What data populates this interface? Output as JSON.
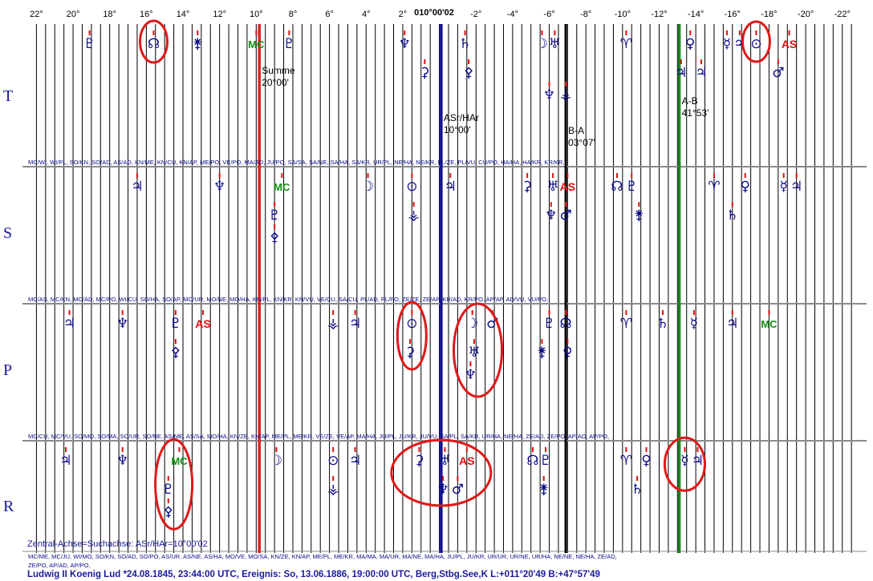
{
  "chart_data": {
    "type": "scatter",
    "title": "",
    "xlabel": "",
    "ylabel": "",
    "x_direction": "descending",
    "xlim": [
      22.5,
      -22.8
    ],
    "x_ticks": [
      {
        "value": 22,
        "label": "22°"
      },
      {
        "value": 20,
        "label": "20°"
      },
      {
        "value": 18,
        "label": "18°"
      },
      {
        "value": 16,
        "label": "16°"
      },
      {
        "value": 14,
        "label": "14°"
      },
      {
        "value": 12,
        "label": "12°"
      },
      {
        "value": 10,
        "label": "10°"
      },
      {
        "value": 8,
        "label": "8°"
      },
      {
        "value": 6,
        "label": "6°"
      },
      {
        "value": 4,
        "label": "4°"
      },
      {
        "value": 2,
        "label": "2°"
      },
      {
        "value": -2,
        "label": "-2°"
      },
      {
        "value": -4,
        "label": "-4°"
      },
      {
        "value": -6,
        "label": "-6°"
      },
      {
        "value": -8,
        "label": "-8°"
      },
      {
        "value": -10,
        "label": "-10°"
      },
      {
        "value": -12,
        "label": "-12°"
      },
      {
        "value": -14,
        "label": "-14°"
      },
      {
        "value": -16,
        "label": "-16°"
      },
      {
        "value": -18,
        "label": "-18°"
      },
      {
        "value": -20,
        "label": "-20°"
      },
      {
        "value": -22,
        "label": "-22°"
      }
    ],
    "center_label": "010°00'02",
    "grid": true,
    "rows": [
      {
        "label": "T"
      },
      {
        "label": "S"
      },
      {
        "label": "P"
      },
      {
        "label": "R"
      }
    ],
    "reference_lines": [
      {
        "name": "summe",
        "x": 9.83,
        "color": "#e02020",
        "label_lines": [
          "Summe",
          "20°00'"
        ]
      },
      {
        "name": "asr-har",
        "x": -0.1,
        "color": "#10108a",
        "label_lines": [
          "ASr/HAr",
          "10°00'"
        ]
      },
      {
        "name": "b-a",
        "x": -6.9,
        "color": "#000000",
        "label_lines": [
          "B-A",
          "03°07'"
        ]
      },
      {
        "name": "a-b",
        "x": -13.1,
        "color": "#108a10",
        "label_lines": [
          "A-B",
          "41°53'"
        ]
      }
    ],
    "points": [
      {
        "row": 0,
        "level": 0,
        "x": 19.1,
        "symbol": "♇",
        "color": "blue"
      },
      {
        "row": 0,
        "level": 0,
        "x": 15.6,
        "symbol": "☊",
        "color": "blue"
      },
      {
        "row": 0,
        "level": 0,
        "x": 13.2,
        "symbol": "⚵",
        "color": "blue"
      },
      {
        "row": 0,
        "level": 0,
        "x": 10.0,
        "symbol": "MC",
        "color": "green"
      },
      {
        "row": 0,
        "level": 0,
        "x": 8.2,
        "symbol": "♇",
        "color": "blue"
      },
      {
        "row": 0,
        "level": 0,
        "x": 1.9,
        "symbol": "♆",
        "color": "blue"
      },
      {
        "row": 0,
        "level": 0,
        "x": -1.4,
        "symbol": "♄",
        "color": "blue"
      },
      {
        "row": 0,
        "level": 0,
        "x": -5.6,
        "symbol": "☽",
        "color": "blue"
      },
      {
        "row": 0,
        "level": 0,
        "x": -6.3,
        "symbol": "♅",
        "color": "blue"
      },
      {
        "row": 0,
        "level": 0,
        "x": -10.2,
        "symbol": "♈",
        "color": "blue"
      },
      {
        "row": 0,
        "level": 0,
        "x": -13.7,
        "symbol": "♀",
        "color": "blue"
      },
      {
        "row": 0,
        "level": 0,
        "x": -15.7,
        "symbol": "☿",
        "color": "blue"
      },
      {
        "row": 0,
        "level": 0,
        "x": -16.4,
        "symbol": "♃",
        "color": "blue"
      },
      {
        "row": 0,
        "level": 0,
        "x": -17.3,
        "symbol": "⊙",
        "color": "blue"
      },
      {
        "row": 0,
        "level": 0,
        "x": -19.1,
        "symbol": "AS",
        "color": "red"
      },
      {
        "row": 0,
        "level": 1,
        "x": 0.8,
        "symbol": "⚳",
        "color": "blue"
      },
      {
        "row": 0,
        "level": 1,
        "x": -1.6,
        "symbol": "⚴",
        "color": "blue"
      },
      {
        "row": 0,
        "level": 2,
        "x": -6.0,
        "symbol": "♆",
        "color": "blue"
      },
      {
        "row": 0,
        "level": 2,
        "x": -6.9,
        "symbol": "⚶",
        "color": "blue"
      },
      {
        "row": 0,
        "level": 1,
        "x": -13.2,
        "symbol": "♃",
        "color": "blue"
      },
      {
        "row": 0,
        "level": 1,
        "x": -14.3,
        "symbol": "♃",
        "color": "blue"
      },
      {
        "row": 0,
        "level": 1,
        "x": -18.5,
        "symbol": "♂",
        "color": "blue"
      },
      {
        "row": 1,
        "level": 0,
        "x": 16.5,
        "symbol": "♃",
        "color": "blue"
      },
      {
        "row": 1,
        "level": 0,
        "x": 12.0,
        "symbol": "♆",
        "color": "blue"
      },
      {
        "row": 1,
        "level": 0,
        "x": 8.6,
        "symbol": "MC",
        "color": "green"
      },
      {
        "row": 1,
        "level": 0,
        "x": 3.9,
        "symbol": "☽",
        "color": "blue"
      },
      {
        "row": 1,
        "level": 0,
        "x": 1.5,
        "symbol": "⊙",
        "color": "blue"
      },
      {
        "row": 1,
        "level": 0,
        "x": -0.6,
        "symbol": "♃",
        "color": "blue"
      },
      {
        "row": 1,
        "level": 0,
        "x": -4.8,
        "symbol": "⚳",
        "color": "blue"
      },
      {
        "row": 1,
        "level": 0,
        "x": -6.2,
        "symbol": "♅",
        "color": "blue"
      },
      {
        "row": 1,
        "level": 0,
        "x": -7.0,
        "symbol": "AS",
        "color": "red"
      },
      {
        "row": 1,
        "level": 0,
        "x": -9.7,
        "symbol": "☊",
        "color": "blue"
      },
      {
        "row": 1,
        "level": 0,
        "x": -10.5,
        "symbol": "♇",
        "color": "blue"
      },
      {
        "row": 1,
        "level": 0,
        "x": -15.0,
        "symbol": "♈",
        "color": "blue"
      },
      {
        "row": 1,
        "level": 0,
        "x": -16.7,
        "symbol": "♀",
        "color": "blue"
      },
      {
        "row": 1,
        "level": 0,
        "x": -18.8,
        "symbol": "☿",
        "color": "blue"
      },
      {
        "row": 1,
        "level": 0,
        "x": -19.5,
        "symbol": "♃",
        "color": "blue"
      },
      {
        "row": 1,
        "level": 1,
        "x": 9.0,
        "symbol": "♇",
        "color": "blue"
      },
      {
        "row": 1,
        "level": 2,
        "x": 9.0,
        "symbol": "⚴",
        "color": "blue"
      },
      {
        "row": 1,
        "level": 1,
        "x": 1.4,
        "symbol": "⚶",
        "color": "blue"
      },
      {
        "row": 1,
        "level": 1,
        "x": -6.1,
        "symbol": "♆",
        "color": "blue"
      },
      {
        "row": 1,
        "level": 1,
        "x": -6.9,
        "symbol": "♂",
        "color": "blue"
      },
      {
        "row": 1,
        "level": 1,
        "x": -10.9,
        "symbol": "⚵",
        "color": "blue"
      },
      {
        "row": 1,
        "level": 1,
        "x": -16.0,
        "symbol": "♄",
        "color": "blue"
      },
      {
        "row": 2,
        "level": 0,
        "x": 20.2,
        "symbol": "♃",
        "color": "blue"
      },
      {
        "row": 2,
        "level": 0,
        "x": 17.3,
        "symbol": "♆",
        "color": "blue"
      },
      {
        "row": 2,
        "level": 0,
        "x": 14.4,
        "symbol": "♇",
        "color": "blue"
      },
      {
        "row": 2,
        "level": 0,
        "x": 12.9,
        "symbol": "AS",
        "color": "red"
      },
      {
        "row": 2,
        "level": 0,
        "x": 5.8,
        "symbol": "⚶",
        "color": "blue"
      },
      {
        "row": 2,
        "level": 0,
        "x": 4.6,
        "symbol": "♃",
        "color": "blue"
      },
      {
        "row": 2,
        "level": 0,
        "x": 1.5,
        "symbol": "⊙",
        "color": "blue"
      },
      {
        "row": 2,
        "level": 0,
        "x": -1.8,
        "symbol": "☽",
        "color": "blue"
      },
      {
        "row": 2,
        "level": 0,
        "x": -2.9,
        "symbol": "♂",
        "color": "blue"
      },
      {
        "row": 2,
        "level": 0,
        "x": -6.0,
        "symbol": "♇",
        "color": "blue"
      },
      {
        "row": 2,
        "level": 0,
        "x": -6.9,
        "symbol": "☊",
        "color": "blue"
      },
      {
        "row": 2,
        "level": 0,
        "x": -10.2,
        "symbol": "♈",
        "color": "blue"
      },
      {
        "row": 2,
        "level": 0,
        "x": -12.2,
        "symbol": "♄",
        "color": "blue"
      },
      {
        "row": 2,
        "level": 0,
        "x": -13.9,
        "symbol": "☿",
        "color": "blue"
      },
      {
        "row": 2,
        "level": 0,
        "x": -16.0,
        "symbol": "♃",
        "color": "blue"
      },
      {
        "row": 2,
        "level": 0,
        "x": -18.0,
        "symbol": "MC",
        "color": "green"
      },
      {
        "row": 2,
        "level": 1,
        "x": 14.4,
        "symbol": "⚴",
        "color": "blue"
      },
      {
        "row": 2,
        "level": 1,
        "x": 1.6,
        "symbol": "⚳",
        "color": "blue"
      },
      {
        "row": 2,
        "level": 1,
        "x": -1.9,
        "symbol": "♅",
        "color": "blue"
      },
      {
        "row": 2,
        "level": 2,
        "x": -1.7,
        "symbol": "♆",
        "color": "blue"
      },
      {
        "row": 2,
        "level": 1,
        "x": -5.6,
        "symbol": "⚵",
        "color": "blue"
      },
      {
        "row": 2,
        "level": 1,
        "x": -7.0,
        "symbol": "♀",
        "color": "blue"
      },
      {
        "row": 3,
        "level": 0,
        "x": 20.4,
        "symbol": "♃",
        "color": "blue"
      },
      {
        "row": 3,
        "level": 0,
        "x": 17.3,
        "symbol": "♆",
        "color": "blue"
      },
      {
        "row": 3,
        "level": 0,
        "x": 14.2,
        "symbol": "MC",
        "color": "green"
      },
      {
        "row": 3,
        "level": 0,
        "x": 8.9,
        "symbol": "☽",
        "color": "blue"
      },
      {
        "row": 3,
        "level": 0,
        "x": 5.8,
        "symbol": "⊙",
        "color": "blue"
      },
      {
        "row": 3,
        "level": 0,
        "x": 4.6,
        "symbol": "♃",
        "color": "blue"
      },
      {
        "row": 3,
        "level": 0,
        "x": 1.1,
        "symbol": "⚳",
        "color": "blue"
      },
      {
        "row": 3,
        "level": 0,
        "x": -0.3,
        "symbol": "♅",
        "color": "blue"
      },
      {
        "row": 3,
        "level": 0,
        "x": -1.5,
        "symbol": "AS",
        "color": "red"
      },
      {
        "row": 3,
        "level": 0,
        "x": -5.1,
        "symbol": "☊",
        "color": "blue"
      },
      {
        "row": 3,
        "level": 0,
        "x": -5.8,
        "symbol": "♇",
        "color": "blue"
      },
      {
        "row": 3,
        "level": 0,
        "x": -10.2,
        "symbol": "♈",
        "color": "blue"
      },
      {
        "row": 3,
        "level": 0,
        "x": -11.3,
        "symbol": "♀",
        "color": "blue"
      },
      {
        "row": 3,
        "level": 0,
        "x": -13.4,
        "symbol": "☿",
        "color": "blue"
      },
      {
        "row": 3,
        "level": 0,
        "x": -14.1,
        "symbol": "♃",
        "color": "blue"
      },
      {
        "row": 3,
        "level": 1,
        "x": 14.8,
        "symbol": "♇",
        "color": "blue"
      },
      {
        "row": 3,
        "level": 2,
        "x": 14.8,
        "symbol": "⚴",
        "color": "blue"
      },
      {
        "row": 3,
        "level": 1,
        "x": 5.8,
        "symbol": "⚶",
        "color": "blue"
      },
      {
        "row": 3,
        "level": 1,
        "x": -0.2,
        "symbol": "♆",
        "color": "blue"
      },
      {
        "row": 3,
        "level": 1,
        "x": -1.0,
        "symbol": "♂",
        "color": "blue"
      },
      {
        "row": 3,
        "level": 1,
        "x": -5.7,
        "symbol": "⚵",
        "color": "blue"
      },
      {
        "row": 3,
        "level": 1,
        "x": -10.8,
        "symbol": "♄",
        "color": "blue"
      }
    ],
    "annotations": [
      {
        "row": 0,
        "x": 15.6,
        "level": 0,
        "rx": 17,
        "ry": 26
      },
      {
        "row": 0,
        "x": -17.3,
        "level": 0,
        "rx": 17,
        "ry": 25
      },
      {
        "row": 2,
        "x": 1.5,
        "level": 0.5,
        "rx": 18,
        "ry": 42
      },
      {
        "row": 2,
        "x": -2.1,
        "level": 1.0,
        "rx": 30,
        "ry": 58
      },
      {
        "row": 3,
        "x": 14.5,
        "level": 0.9,
        "rx": 23,
        "ry": 56
      },
      {
        "row": 3,
        "x": -0.1,
        "level": 0.5,
        "rx": 62,
        "ry": 41
      },
      {
        "row": 3,
        "x": -13.4,
        "level": 0.2,
        "rx": 25,
        "ry": 33
      }
    ]
  },
  "row_lists": [
    "MC/WI, WI/PL, SO/KN, SO/AD, AS/AD, KN/ME, KN/CU, KN/AP, ME/PO, VE/PO, MA/AD, JU/PO, SA/SA, SA/NE, SA/HA, SA/KR, UR/PL, NE/HA, NE/KR, PL/ZE, PL/VU, CU/PO, HA/HA, HA/KR, KR/KR,",
    "MC/AS, MC/KN, MC/AD, MC/PO, WI/CU, SO/HA, SO/AP, MO/UR, MO/NE, MO/HA, KN/PL, KN/KR, KN/VU, VE/CU, SA/CU, PL/AD, PL/PO, ZE/ZE, ZE/AP, KR/AD, KR/PO, AP/AP, AD/VU, VU/PO,",
    "MC/CU, MC/VU, SO/MO, SO/MA, SO/UR, SO/NE, AS/ME, AS/SA, MO/HA, KN/ZE, KN/AP, ME/PL, ME/KR, VE/ZE, VE/AP, MA/HA, JU/PL, JU/KR, JU/VU, SA/PL, SA/KR, UR/HA, NE/HA, ZE/AD, ZE/PO, AP/AD, AP/PO,"
  ],
  "footer": {
    "axis_note": "Zentral-Achse=Suchachse: ASr/HAr=10°00'02",
    "list_line1": "MC/ME, MC/JU, WI/MO, SO/KN, SO/AD, SO/PO, AS/UR, AS/NE, AS/HA, MO/VE, MO/SA, KN/ZE, KN/AP, ME/PL, ME/KR, MA/MA, MA/UR, MA/NE, MA/HA, JU/PL, JU/KR, UR/UR, UR/NE, UR/HA, NE/NE, NE/HA, ZE/AD,",
    "list_line2": "ZE/PO, AP/AD, AP/PO,",
    "info": "Ludwig II Koenig Lud  *24.08.1845, 23:44:00 UTC, Ereignis: So, 13.06.1886, 19:00:00 UTC, Berg,Stbg.See,K L:+011°20'49 B:+47°57'49"
  },
  "colors": {
    "blue": "#0a0a8a",
    "red": "#e01010",
    "green": "#109010",
    "grid": "#000000",
    "row_label": "#1a1a9a",
    "circle": "#e01818"
  }
}
